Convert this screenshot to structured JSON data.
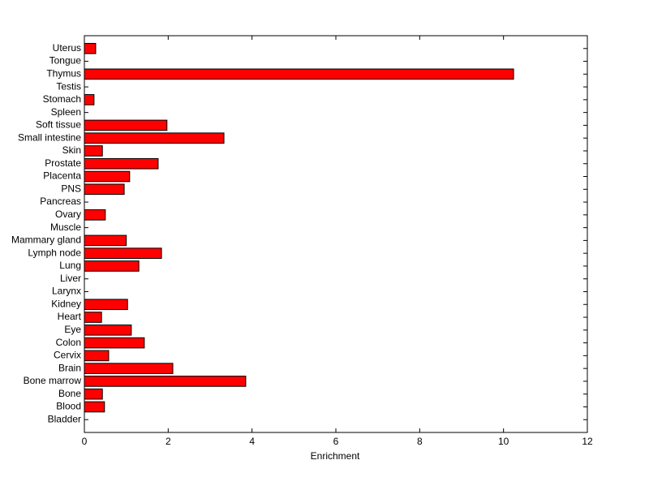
{
  "chart_data": {
    "type": "barh",
    "x_label": "Enrichment",
    "categories": [
      "Bladder",
      "Blood",
      "Bone",
      "Bone marrow",
      "Brain",
      "Cervix",
      "Colon",
      "Eye",
      "Heart",
      "Kidney",
      "Larynx",
      "Liver",
      "Lung",
      "Lymph node",
      "Mammary gland",
      "Muscle",
      "Ovary",
      "Pancreas",
      "PNS",
      "Placenta",
      "Prostate",
      "Skin",
      "Small intestine",
      "Soft tissue",
      "Spleen",
      "Stomach",
      "Testis",
      "Thymus",
      "Tongue",
      "Uterus"
    ],
    "values": [
      0,
      0.48,
      0.43,
      3.85,
      2.11,
      0.58,
      1.43,
      1.12,
      0.41,
      1.03,
      0,
      0,
      1.3,
      1.84,
      1.0,
      0,
      0.5,
      0,
      0.95,
      1.08,
      1.76,
      0.43,
      3.33,
      1.97,
      0,
      0.23,
      0,
      10.24,
      0,
      0.27
    ],
    "color": "#ff0000",
    "xlim": [
      0,
      12
    ],
    "xticks": [
      0,
      2,
      4,
      6,
      8,
      10,
      12
    ]
  }
}
